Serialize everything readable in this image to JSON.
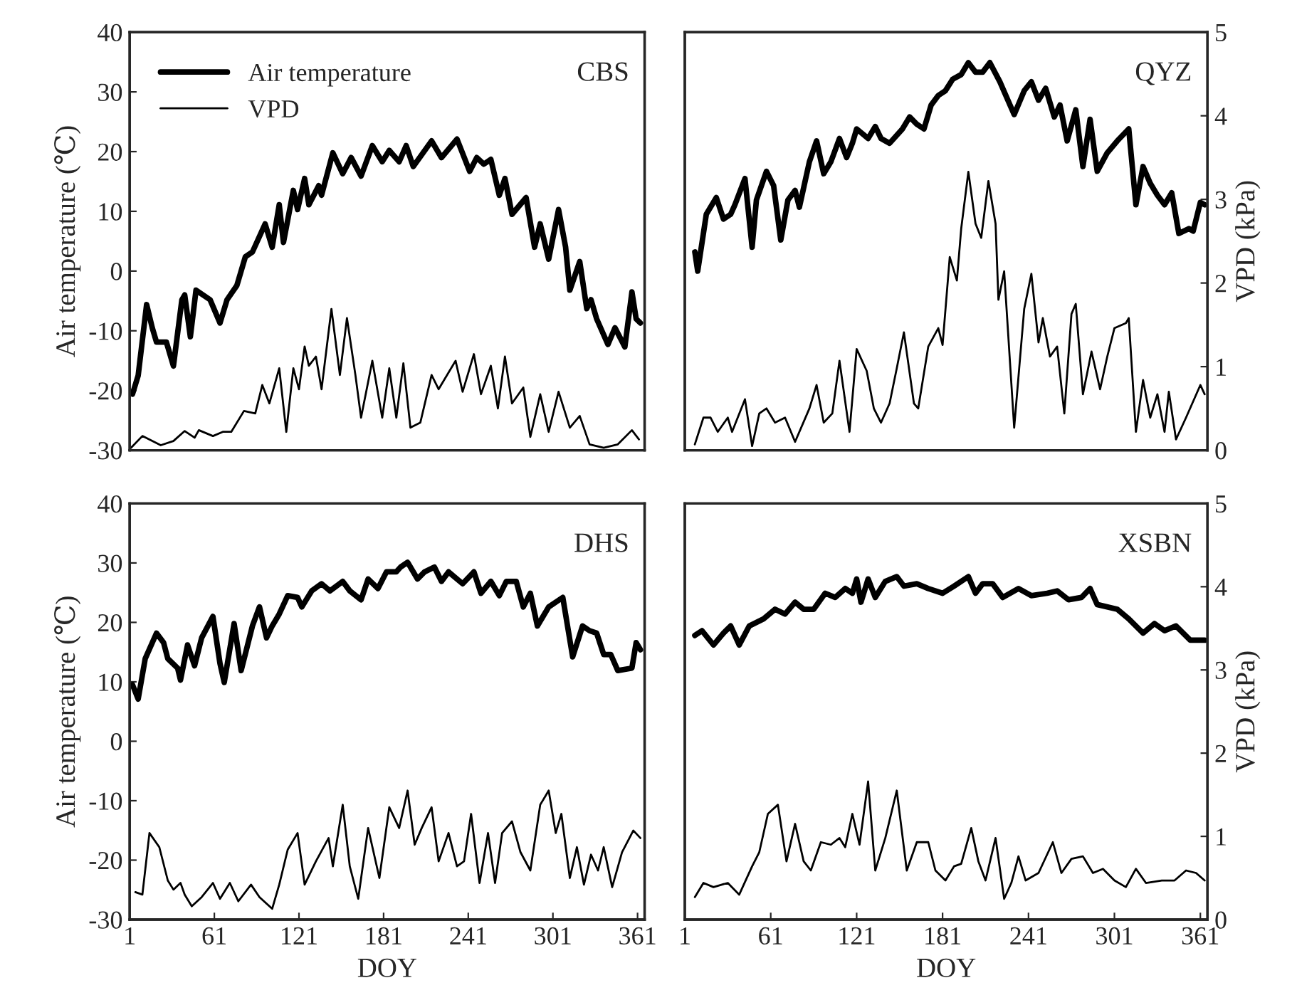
{
  "chart_data": [
    {
      "type": "line",
      "title": "CBS",
      "ylabel": "Air temperature (℃)",
      "xlim": [
        1,
        366
      ],
      "ylim": [
        -30,
        40
      ],
      "yticks": [
        -30,
        -20,
        -10,
        0,
        10,
        20,
        30,
        40
      ],
      "y2lim": [
        0,
        5
      ],
      "tick_labels": "y",
      "legend": "top left",
      "grid": false,
      "line_style": "solid",
      "series": [
        {
          "name": "Air temperature",
          "color": "#000000",
          "x": [
            3,
            7,
            13,
            17,
            20,
            27,
            32,
            38,
            40,
            44,
            48,
            58,
            65,
            70,
            77,
            83,
            88,
            97,
            102,
            107,
            110,
            117,
            120,
            125,
            128,
            135,
            137,
            145,
            152,
            158,
            165,
            173,
            180,
            185,
            192,
            197,
            202,
            215,
            222,
            233,
            242,
            247,
            252,
            257,
            263,
            267,
            272,
            282,
            288,
            292,
            298,
            305,
            310,
            313,
            320,
            325,
            328,
            332,
            340,
            345,
            352,
            357,
            360,
            363
          ],
          "values": [
            -20.6,
            -17.5,
            -5.6,
            -9.5,
            -11.9,
            -11.9,
            -15.9,
            -4.8,
            -4,
            -11,
            -3.2,
            -4.8,
            -8.7,
            -4.8,
            -2.4,
            2.4,
            3.2,
            7.9,
            4,
            11.1,
            4.8,
            13.5,
            10.3,
            15.5,
            11.1,
            14.3,
            12.7,
            19.8,
            16.3,
            19,
            15.9,
            21,
            18.3,
            20.2,
            18.3,
            21,
            17.5,
            21.8,
            19,
            22.1,
            16.7,
            19,
            17.9,
            18.7,
            12.7,
            15.5,
            9.5,
            12.3,
            4,
            7.9,
            2,
            10.3,
            4,
            -3.2,
            1.6,
            -6.3,
            -4.8,
            -8,
            -12.3,
            -9.5,
            -12.7,
            -3.5,
            -8,
            -8.7
          ]
        },
        {
          "name": "VPD",
          "color": "#000000",
          "axis": "y2",
          "x": [
            2,
            10,
            23,
            32,
            40,
            47,
            50,
            60,
            67,
            73,
            82,
            90,
            95,
            100,
            107,
            112,
            117,
            121,
            125,
            128,
            133,
            137,
            144,
            150,
            155,
            161,
            165,
            173,
            180,
            185,
            190,
            195,
            200,
            207,
            215,
            220,
            232,
            237,
            245,
            250,
            257,
            262,
            267,
            272,
            280,
            285,
            292,
            298,
            305,
            313,
            320,
            327,
            337,
            347,
            357,
            362
          ],
          "values": [
            0.03,
            0.17,
            0.06,
            0.11,
            0.23,
            0.15,
            0.24,
            0.17,
            0.22,
            0.22,
            0.47,
            0.44,
            0.78,
            0.56,
            0.98,
            0.22,
            0.98,
            0.73,
            1.24,
            1.01,
            1.12,
            0.73,
            1.69,
            0.9,
            1.58,
            0.9,
            0.39,
            1.07,
            0.39,
            0.98,
            0.39,
            1.04,
            0.27,
            0.33,
            0.9,
            0.73,
            1.07,
            0.7,
            1.15,
            0.67,
            1.01,
            0.5,
            1.12,
            0.56,
            0.75,
            0.16,
            0.67,
            0.22,
            0.7,
            0.27,
            0.41,
            0.07,
            0.03,
            0.07,
            0.24,
            0.13
          ]
        }
      ]
    },
    {
      "type": "line",
      "title": "QYZ",
      "y2label": "VPD (kPa)",
      "xlim": [
        1,
        366
      ],
      "ylim": [
        -30,
        40
      ],
      "y2lim": [
        0,
        5
      ],
      "y2ticks": [
        0,
        1,
        2,
        3,
        4,
        5
      ],
      "tick_labels": "y",
      "grid": false,
      "line_style": "solid",
      "series": [
        {
          "color": "#000000",
          "x": [
            8,
            10,
            16,
            23,
            28,
            33,
            36,
            43,
            48,
            51,
            58,
            63,
            68,
            73,
            78,
            81,
            88,
            93,
            98,
            103,
            109,
            114,
            118,
            121,
            129,
            134,
            138,
            144,
            153,
            158,
            163,
            168,
            173,
            178,
            183,
            188,
            194,
            199,
            204,
            209,
            214,
            221,
            231,
            238,
            243,
            248,
            253,
            259,
            263,
            268,
            274,
            279,
            284,
            289,
            296,
            303,
            311,
            316,
            321,
            326,
            331,
            336,
            341,
            346,
            353,
            356,
            361,
            364
          ],
          "values": [
            3.2,
            0,
            9.5,
            12.3,
            8.7,
            9.5,
            11.1,
            15.5,
            4,
            11.9,
            16.7,
            14.3,
            5.2,
            11.9,
            13.5,
            10.7,
            18.3,
            21.8,
            16.3,
            18.3,
            22.2,
            19,
            21.4,
            23.8,
            22.2,
            24.2,
            22.2,
            21.4,
            23.8,
            25.8,
            24.6,
            23.8,
            27.8,
            29.4,
            30.2,
            32.1,
            32.9,
            34.9,
            33.3,
            33.3,
            34.9,
            31.7,
            26.2,
            30.2,
            31.7,
            28.6,
            30.6,
            25.8,
            27.8,
            21.8,
            27,
            17.5,
            25.4,
            16.7,
            19.8,
            21.8,
            23.8,
            11.1,
            17.5,
            14.7,
            12.7,
            11.1,
            13.1,
            6.3,
            7.1,
            6.7,
            11.5,
            11.1
          ]
        },
        {
          "color": "#000000",
          "axis": "y2",
          "x": [
            8,
            14,
            19,
            24,
            31,
            34,
            43,
            48,
            53,
            58,
            64,
            71,
            78,
            88,
            93,
            98,
            104,
            109,
            116,
            121,
            128,
            133,
            138,
            144,
            149,
            154,
            161,
            164,
            171,
            178,
            181,
            186,
            191,
            194,
            199,
            204,
            208,
            213,
            218,
            220,
            224,
            231,
            238,
            243,
            248,
            251,
            256,
            261,
            266,
            271,
            274,
            279,
            285,
            291,
            296,
            301,
            309,
            311,
            316,
            321,
            326,
            331,
            336,
            339,
            344,
            351,
            361,
            364
          ],
          "values": [
            0.07,
            0.39,
            0.39,
            0.22,
            0.39,
            0.22,
            0.61,
            0.05,
            0.44,
            0.5,
            0.33,
            0.39,
            0.1,
            0.5,
            0.78,
            0.33,
            0.44,
            1.07,
            0.22,
            1.21,
            0.95,
            0.5,
            0.33,
            0.56,
            0.98,
            1.41,
            0.56,
            0.5,
            1.24,
            1.46,
            1.26,
            2.31,
            2.03,
            2.65,
            3.33,
            2.71,
            2.54,
            3.22,
            2.71,
            1.8,
            2.14,
            0.27,
            1.69,
            2.11,
            1.29,
            1.58,
            1.12,
            1.24,
            0.44,
            1.63,
            1.75,
            0.67,
            1.18,
            0.73,
            1.12,
            1.46,
            1.52,
            1.58,
            0.22,
            0.84,
            0.39,
            0.67,
            0.22,
            0.7,
            0.13,
            0.39,
            0.78,
            0.67
          ]
        }
      ]
    },
    {
      "type": "line",
      "title": "DHS",
      "ylabel": "Air temperature (℃)",
      "xlabel": "DOY",
      "xlim": [
        1,
        366
      ],
      "xticks": [
        1,
        61,
        121,
        181,
        241,
        301,
        361
      ],
      "ylim": [
        -30,
        40
      ],
      "yticks": [
        -30,
        -20,
        -10,
        0,
        10,
        20,
        30,
        40
      ],
      "y2lim": [
        0,
        5
      ],
      "grid": false,
      "line_style": "solid",
      "series": [
        {
          "color": "#000000",
          "x": [
            3,
            7,
            12,
            20,
            25,
            28,
            35,
            37,
            42,
            47,
            52,
            60,
            65,
            68,
            75,
            80,
            88,
            93,
            98,
            102,
            107,
            113,
            120,
            123,
            130,
            137,
            143,
            152,
            157,
            165,
            170,
            177,
            183,
            190,
            193,
            198,
            205,
            210,
            217,
            222,
            227,
            237,
            245,
            250,
            257,
            263,
            268,
            275,
            280,
            285,
            290,
            298,
            308,
            315,
            322,
            327,
            332,
            337,
            342,
            347,
            357,
            360,
            363
          ],
          "values": [
            9.5,
            7.1,
            13.9,
            18.2,
            16.6,
            13.9,
            12.3,
            10.3,
            16.2,
            12.7,
            17.4,
            21,
            13.1,
            9.9,
            19.8,
            11.9,
            19.4,
            22.6,
            17.4,
            19.4,
            21.4,
            24.5,
            24.2,
            22.6,
            25.3,
            26.5,
            25.3,
            26.9,
            25.3,
            23.8,
            27.3,
            25.7,
            28.5,
            28.5,
            29.3,
            30.1,
            27.3,
            28.5,
            29.3,
            26.9,
            28.5,
            26.5,
            28.5,
            24.9,
            26.9,
            24.5,
            26.9,
            26.9,
            22.6,
            24.9,
            19.4,
            22.6,
            24.2,
            14.2,
            19.4,
            18.6,
            18.2,
            14.6,
            14.6,
            11.9,
            12.3,
            16.6,
            15.4
          ]
        },
        {
          "color": "#000000",
          "axis": "y2",
          "x": [
            5,
            10,
            15,
            22,
            28,
            32,
            37,
            40,
            45,
            52,
            60,
            65,
            72,
            78,
            87,
            93,
            102,
            107,
            113,
            120,
            125,
            133,
            142,
            145,
            152,
            157,
            163,
            170,
            178,
            185,
            192,
            198,
            203,
            208,
            215,
            220,
            227,
            233,
            238,
            243,
            249,
            255,
            260,
            265,
            272,
            278,
            285,
            292,
            298,
            303,
            307,
            313,
            318,
            323,
            328,
            333,
            337,
            343,
            350,
            358,
            363
          ],
          "values": [
            0.33,
            0.3,
            1.04,
            0.87,
            0.47,
            0.36,
            0.44,
            0.3,
            0.16,
            0.27,
            0.44,
            0.25,
            0.44,
            0.22,
            0.42,
            0.27,
            0.13,
            0.42,
            0.84,
            1.04,
            0.42,
            0.7,
            0.98,
            0.64,
            1.38,
            0.64,
            0.25,
            1.1,
            0.5,
            1.35,
            1.1,
            1.55,
            0.9,
            1.1,
            1.35,
            0.7,
            1.04,
            0.64,
            0.7,
            1.27,
            0.44,
            1.04,
            0.44,
            1.04,
            1.18,
            0.81,
            0.59,
            1.38,
            1.55,
            1.04,
            1.27,
            0.5,
            0.87,
            0.42,
            0.78,
            0.59,
            0.87,
            0.39,
            0.81,
            1.07,
            0.98
          ]
        }
      ]
    },
    {
      "type": "line",
      "title": "XSBN",
      "y2label": "VPD (kPa)",
      "xlabel": "DOY",
      "xlim": [
        1,
        366
      ],
      "xticks": [
        1,
        61,
        121,
        181,
        241,
        301,
        361
      ],
      "ylim": [
        -30,
        40
      ],
      "y2lim": [
        0,
        5
      ],
      "y2ticks": [
        0,
        1,
        2,
        3,
        4,
        5
      ],
      "grid": false,
      "line_style": "solid",
      "series": [
        {
          "color": "#000000",
          "x": [
            8,
            13,
            21,
            28,
            33,
            39,
            46,
            56,
            64,
            71,
            78,
            84,
            91,
            99,
            106,
            113,
            118,
            121,
            124,
            129,
            134,
            141,
            149,
            154,
            163,
            171,
            181,
            189,
            199,
            204,
            209,
            216,
            223,
            234,
            243,
            254,
            261,
            269,
            278,
            284,
            289,
            303,
            311,
            321,
            329,
            336,
            344,
            354,
            364
          ],
          "values": [
            17.8,
            18.6,
            16.2,
            18.2,
            19.4,
            16.2,
            19.4,
            20.6,
            22.2,
            21.4,
            23.4,
            22.2,
            22.2,
            24.9,
            24.2,
            25.7,
            24.9,
            27.3,
            23.4,
            27.3,
            24.2,
            26.9,
            27.7,
            26.1,
            26.5,
            25.7,
            24.9,
            26.1,
            27.7,
            24.9,
            26.5,
            26.5,
            24.2,
            25.7,
            24.5,
            24.9,
            25.3,
            23.8,
            24.2,
            25.7,
            23,
            22.2,
            20.6,
            18.2,
            19.8,
            18.6,
            19.4,
            17,
            17
          ]
        },
        {
          "color": "#000000",
          "axis": "y2",
          "x": [
            8,
            14,
            21,
            31,
            39,
            48,
            53,
            59,
            66,
            72,
            78,
            84,
            89,
            96,
            103,
            109,
            113,
            118,
            123,
            129,
            134,
            141,
            149,
            156,
            163,
            171,
            176,
            183,
            189,
            194,
            201,
            206,
            211,
            218,
            224,
            229,
            234,
            239,
            248,
            258,
            264,
            271,
            279,
            286,
            293,
            301,
            309,
            316,
            323,
            334,
            343,
            351,
            358,
            364
          ],
          "values": [
            0.27,
            0.44,
            0.39,
            0.44,
            0.3,
            0.64,
            0.81,
            1.27,
            1.38,
            0.7,
            1.15,
            0.7,
            0.59,
            0.93,
            0.9,
            0.98,
            0.87,
            1.27,
            0.9,
            1.66,
            0.59,
            0.98,
            1.55,
            0.59,
            0.93,
            0.93,
            0.59,
            0.47,
            0.64,
            0.67,
            1.1,
            0.7,
            0.47,
            0.98,
            0.25,
            0.44,
            0.76,
            0.47,
            0.56,
            0.93,
            0.56,
            0.73,
            0.76,
            0.56,
            0.61,
            0.47,
            0.39,
            0.61,
            0.44,
            0.47,
            0.47,
            0.59,
            0.56,
            0.47
          ]
        }
      ]
    }
  ]
}
